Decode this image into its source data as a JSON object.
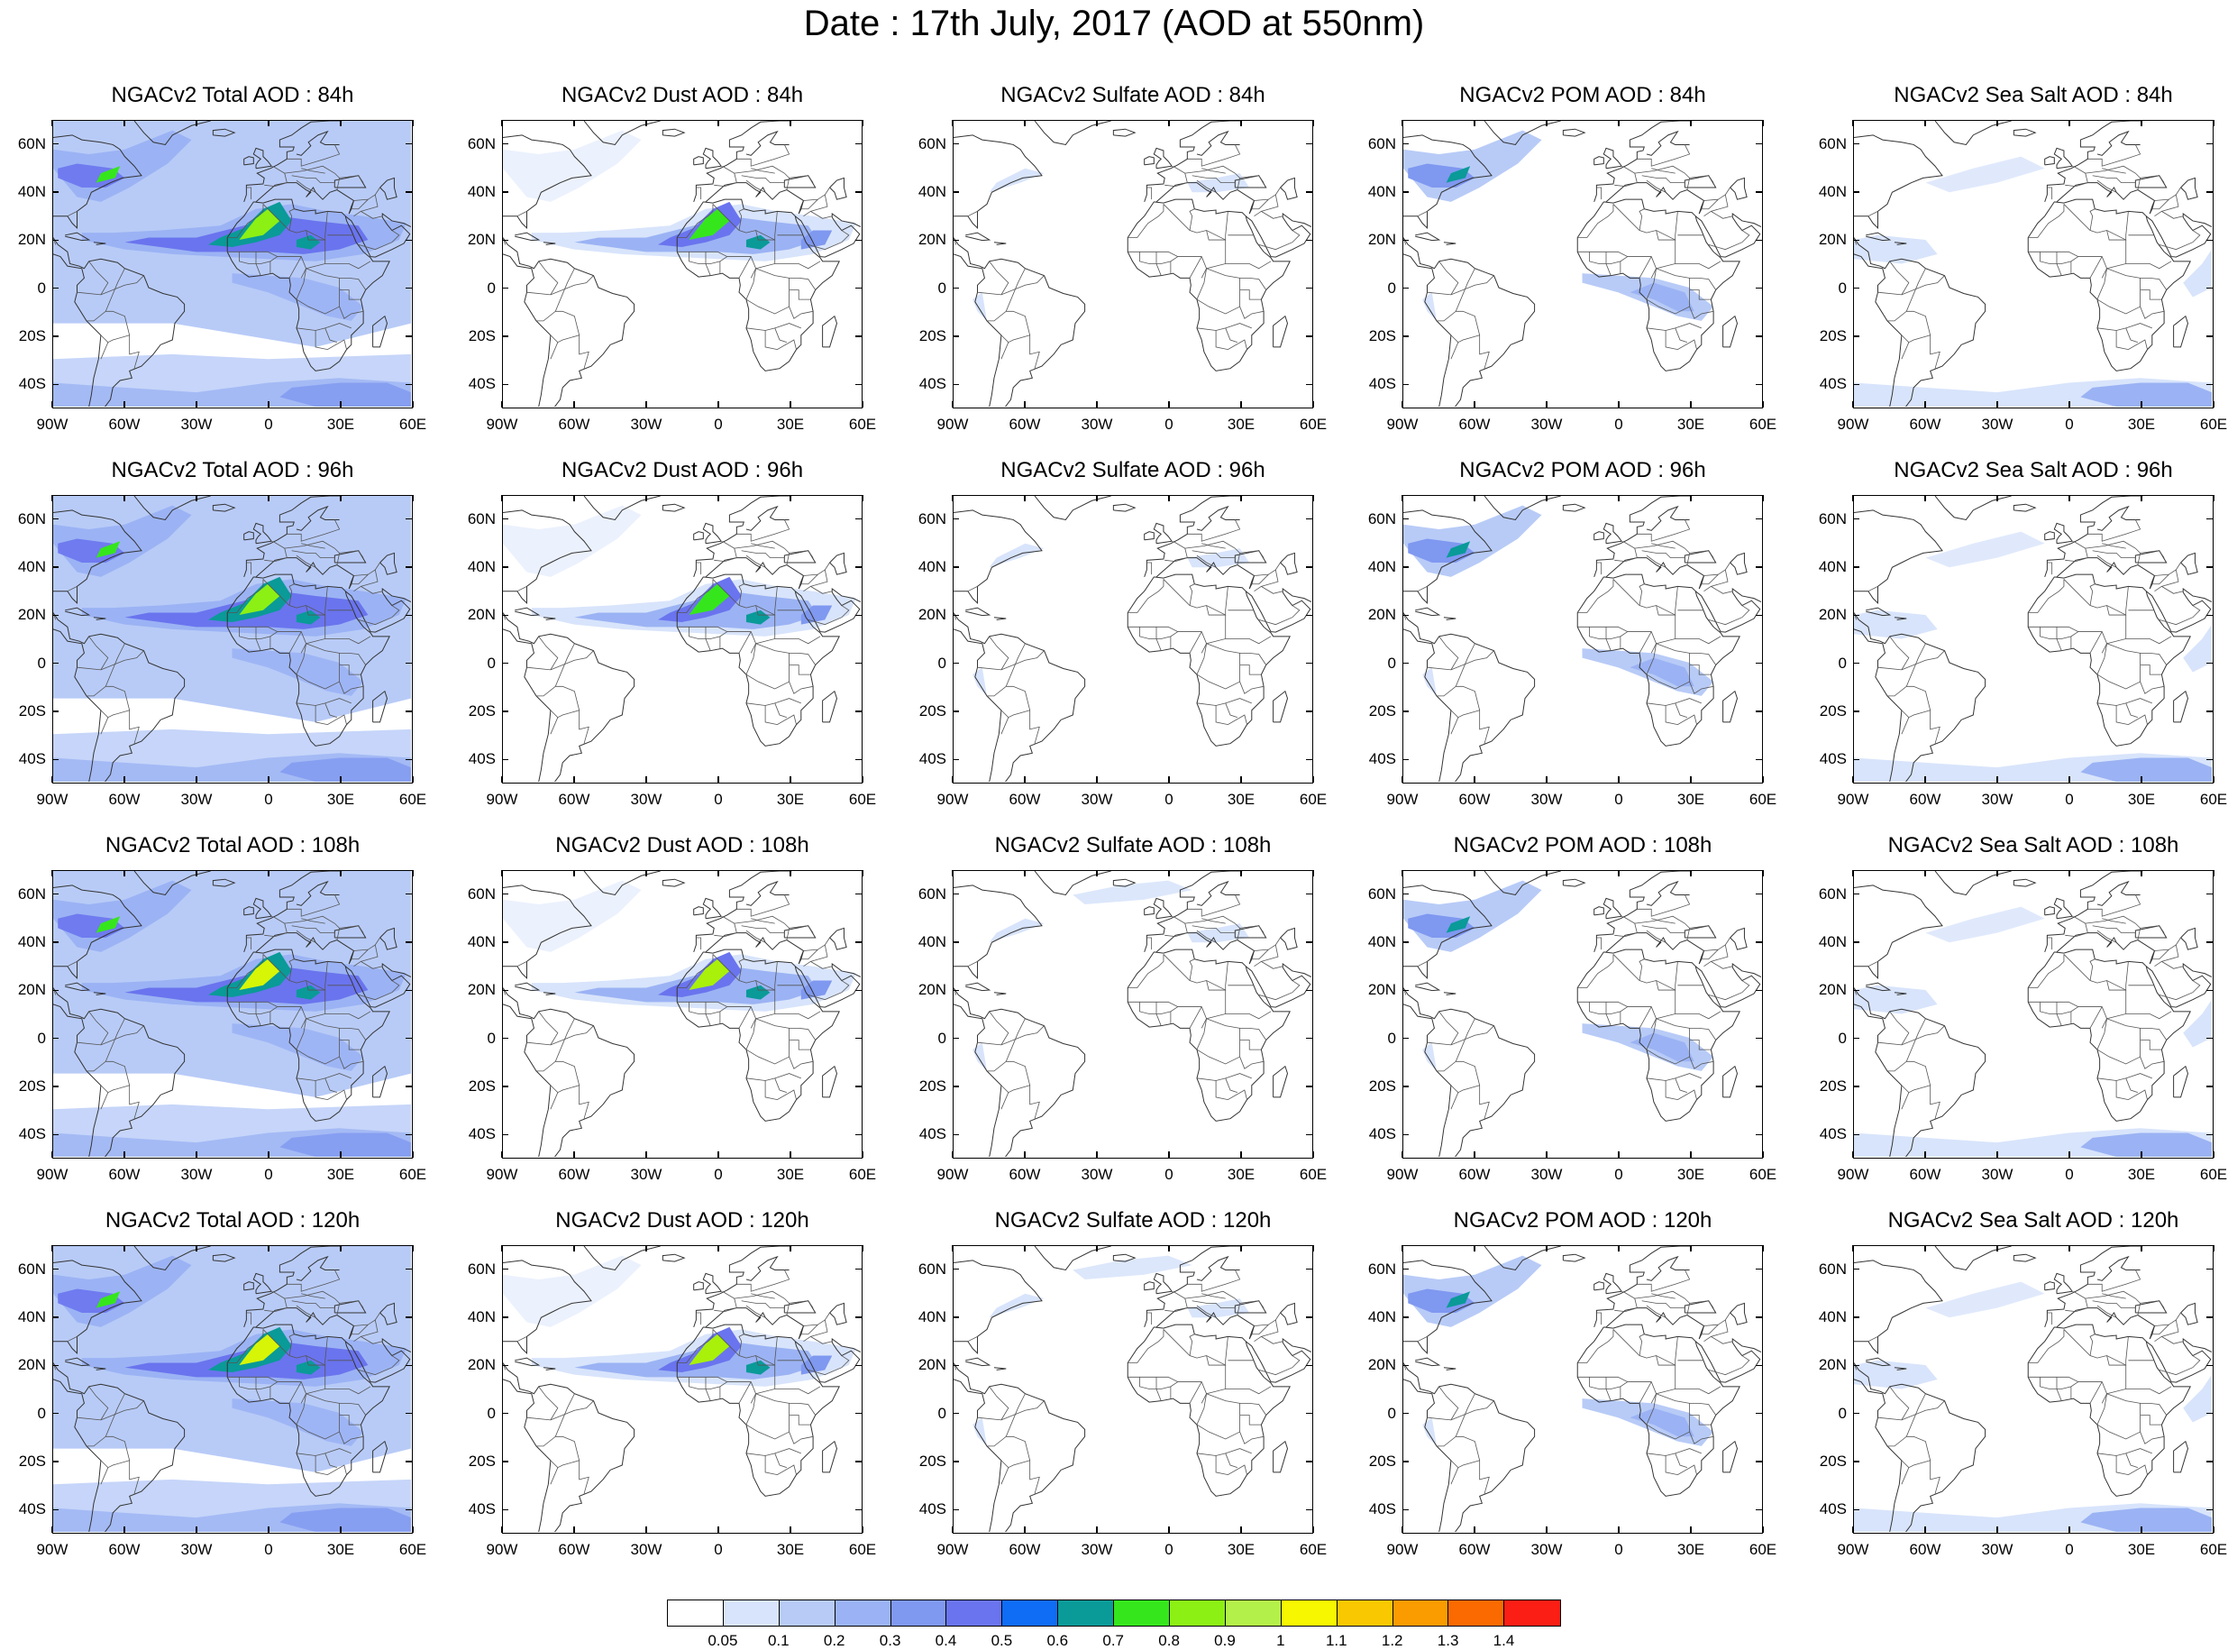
{
  "title": "Date : 17th July, 2017 (AOD at 550nm)",
  "products": [
    {
      "key": "total",
      "label": "Total AOD"
    },
    {
      "key": "dust",
      "label": "Dust AOD"
    },
    {
      "key": "sulfate",
      "label": "Sulfate AOD"
    },
    {
      "key": "pom",
      "label": "POM AOD"
    },
    {
      "key": "seasalt",
      "label": "Sea Salt AOD"
    }
  ],
  "panels": [
    [
      "NGACv2 Total AOD : 84h",
      "NGACv2 Dust AOD : 84h",
      "NGACv2 Sulfate AOD : 84h",
      "NGACv2 POM AOD : 84h",
      "NGACv2 Sea Salt AOD : 84h"
    ],
    [
      "NGACv2 Total AOD : 96h",
      "NGACv2 Dust AOD : 96h",
      "NGACv2 Sulfate AOD : 96h",
      "NGACv2 POM AOD : 96h",
      "NGACv2 Sea Salt AOD : 96h"
    ],
    [
      "NGACv2 Total AOD : 108h",
      "NGACv2 Dust AOD : 108h",
      "NGACv2 Sulfate AOD : 108h",
      "NGACv2 POM AOD : 108h",
      "NGACv2 Sea Salt AOD : 108h"
    ],
    [
      "NGACv2 Total AOD : 120h",
      "NGACv2 Dust AOD : 120h",
      "NGACv2 Sulfate AOD : 120h",
      "NGACv2 POM AOD : 120h",
      "NGACv2 Sea Salt  AOD : 120h"
    ]
  ],
  "lat_ticks": [
    "60N",
    "40N",
    "20N",
    "0",
    "20S",
    "40S"
  ],
  "lon_ticks": [
    "90W",
    "60W",
    "30W",
    "0",
    "30E",
    "60E"
  ],
  "colorbar": {
    "colors": [
      "#ffffff",
      "#d8e4fb",
      "#b8cbf7",
      "#9bb3f4",
      "#7f98f0",
      "#6a74ee",
      "#0f6cf5",
      "#0a9a98",
      "#36e61c",
      "#8cf014",
      "#b4f04a",
      "#f7f700",
      "#fac800",
      "#fa9b00",
      "#fa6a00",
      "#fa1e14"
    ],
    "labels": [
      "0.05",
      "0.1",
      "0.2",
      "0.3",
      "0.4",
      "0.5",
      "0.6",
      "0.7",
      "0.8",
      "0.9",
      "1",
      "1.1",
      "1.2",
      "1.3",
      "1.4"
    ]
  }
}
